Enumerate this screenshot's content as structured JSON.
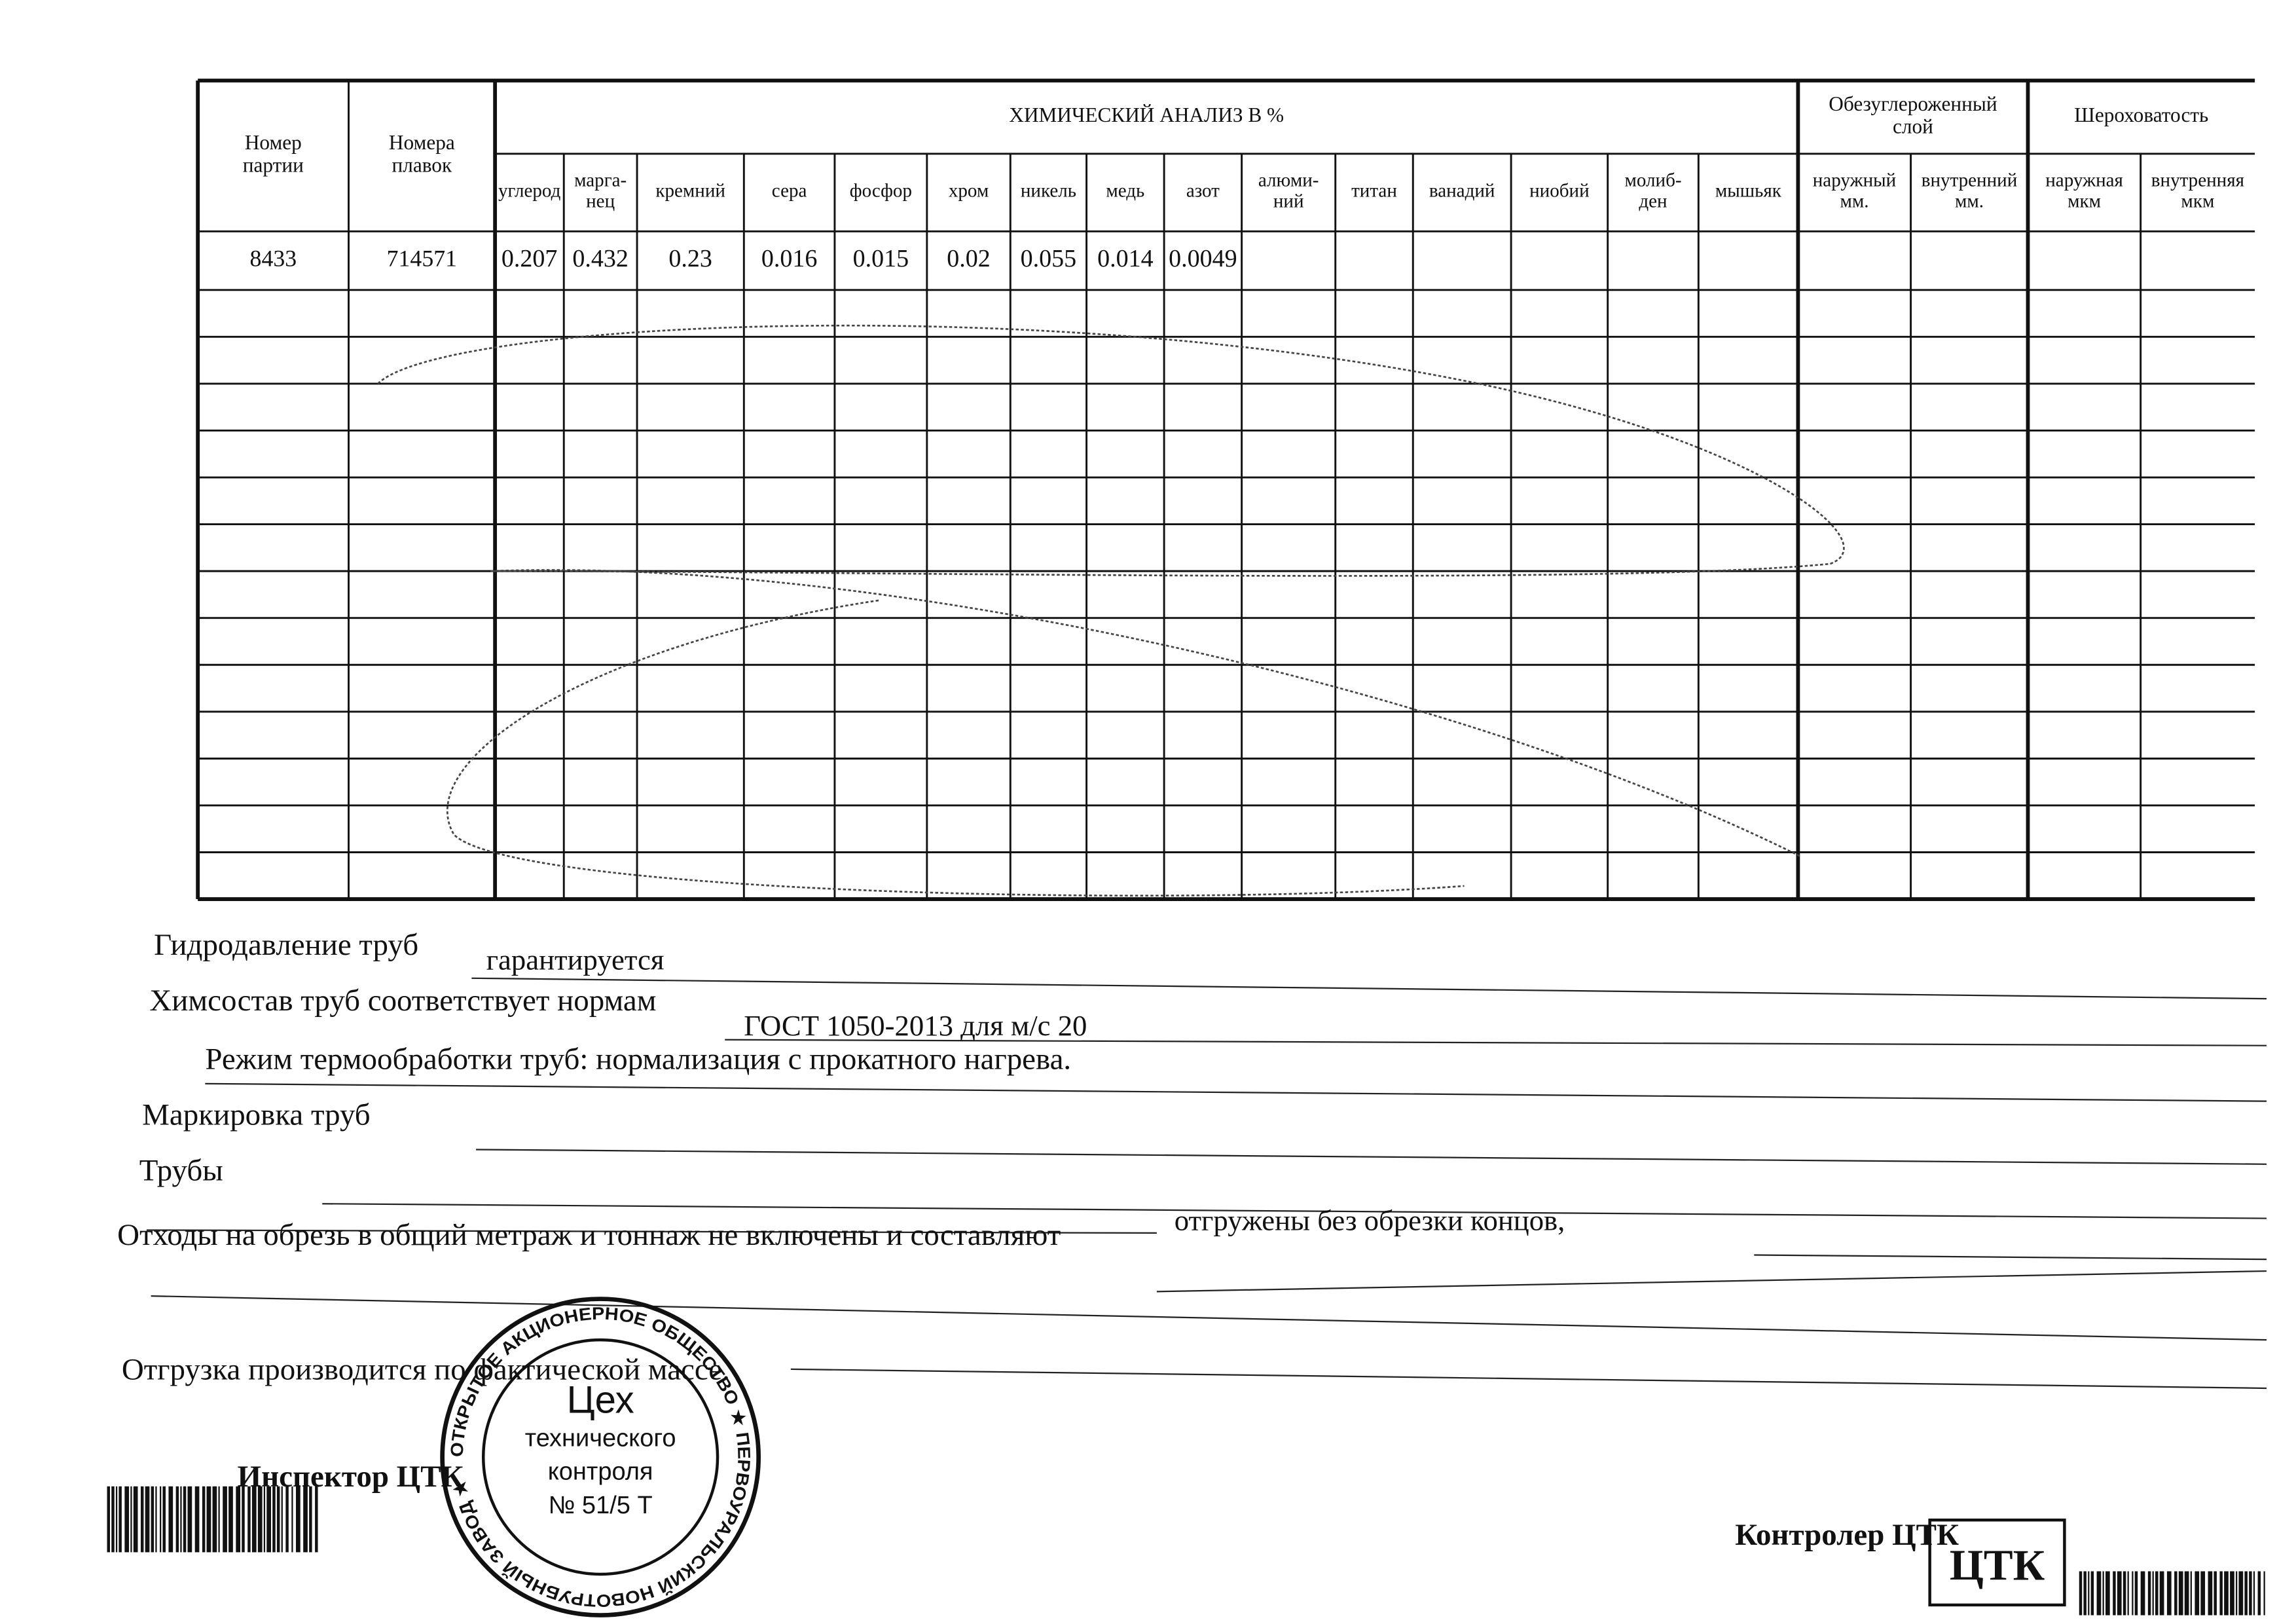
{
  "table": {
    "header": {
      "batch": [
        "Номер",
        "партии"
      ],
      "heats": [
        "Номера",
        "плавок"
      ],
      "chem_title": "ХИМИЧЕСКИЙ АНАЛИЗ  В  %",
      "chem_columns": [
        [
          "углерод"
        ],
        [
          "марга-",
          "нец"
        ],
        [
          "кремний"
        ],
        [
          "сера"
        ],
        [
          "фосфор"
        ],
        [
          "хром"
        ],
        [
          "никель"
        ],
        [
          "медь"
        ],
        [
          "азот"
        ],
        [
          "алюми-",
          "ний"
        ],
        [
          "титан"
        ],
        [
          "ванадий"
        ],
        [
          "ниобий"
        ],
        [
          "молиб-",
          "ден"
        ],
        [
          "мышьяк"
        ]
      ],
      "decarb_title": [
        "Обезуглероженный",
        "слой"
      ],
      "decarb_columns": [
        [
          "наружный",
          "мм."
        ],
        [
          "внутренний",
          "мм."
        ]
      ],
      "rough_title": "Шероховатость",
      "rough_columns": [
        [
          "наружная",
          "мкм"
        ],
        [
          "внутренняя",
          "мкм"
        ]
      ]
    },
    "rows": [
      [
        "8433",
        "714571",
        "0.207",
        "0.432",
        "0.23",
        "0.016",
        "0.015",
        "0.02",
        "0.055",
        "0.014",
        "0.0049"
      ]
    ]
  },
  "form": {
    "hydro_label": "Гидродавление труб",
    "hydro_value": "гарантируется",
    "chem_label": "Химсостав труб соответствует нормам",
    "chem_value": "ГОСТ 1050-2013 для м/с 20",
    "heat_treatment": "Режим термообработки труб: нормализация с прокатного нагрева.",
    "marking_label": "Маркировка труб",
    "pipes_label": "Трубы",
    "pipes_value": "отгружены без обрезки концов,",
    "waste_label": "Отходы на обрезь в общий метраж и тоннаж не включены и составляют",
    "shipment": "Отгрузка производится по фактической массе."
  },
  "signatures": {
    "inspector": "Инспектор ЦТК",
    "controller": "Контролер ЦТК"
  },
  "stamp": {
    "ring": "ОТКРЫТОЕ АКЦИОНЕРНОЕ ОБЩЕСТВО ★ ПЕРВОУРАЛЬСКИЙ НОВОТРУБНЫЙ ЗАВОД ★",
    "lines": [
      "Цех",
      "технического",
      "контроля",
      "№ 51/5 Т"
    ]
  },
  "small_stamp": "ЦТК"
}
